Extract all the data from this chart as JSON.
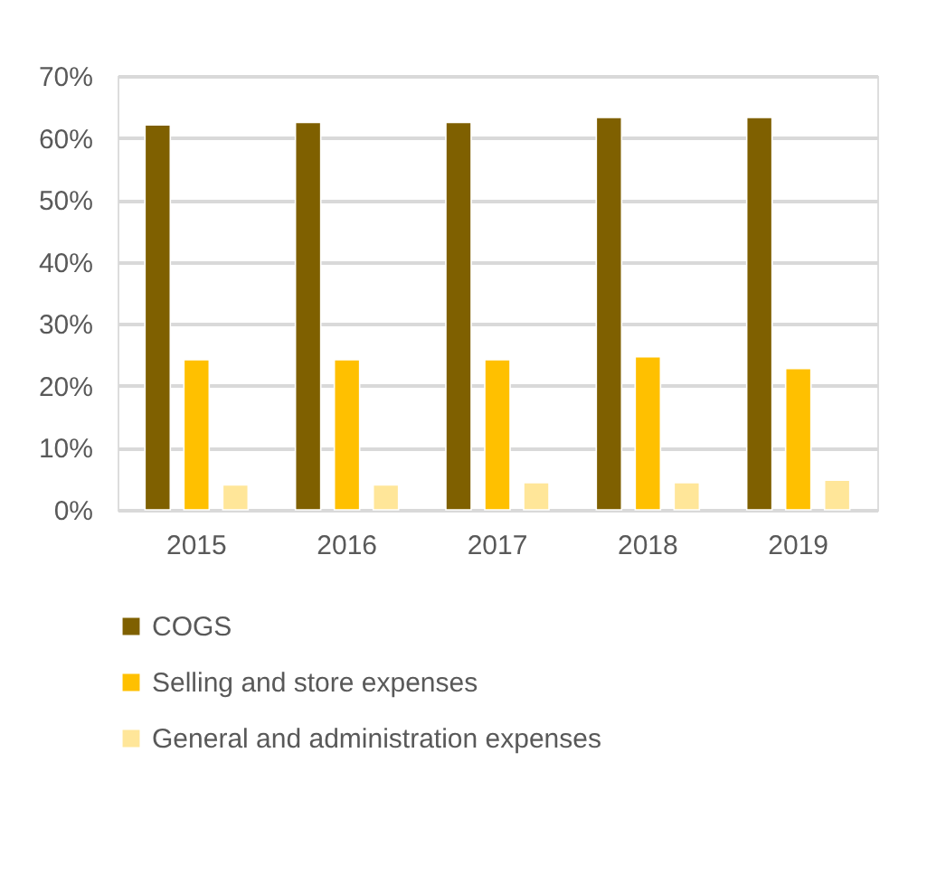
{
  "chart_data": {
    "type": "bar",
    "categories": [
      "2015",
      "2016",
      "2017",
      "2018",
      "2019"
    ],
    "series": [
      {
        "name": "COGS",
        "color": "#7f6000",
        "values": [
          62.1,
          62.5,
          62.5,
          63.3,
          63.3
        ]
      },
      {
        "name": "Selling and store expenses",
        "color": "#ffc000",
        "values": [
          24.2,
          24.2,
          24.2,
          24.7,
          22.8
        ]
      },
      {
        "name": "General and administration expenses",
        "color": "#ffe699",
        "values": [
          4.0,
          4.0,
          4.4,
          4.4,
          4.8
        ]
      }
    ],
    "ylim": [
      0,
      70
    ],
    "yticks": [
      {
        "value": 0,
        "label": "0%"
      },
      {
        "value": 10,
        "label": "10%"
      },
      {
        "value": 20,
        "label": "20%"
      },
      {
        "value": 30,
        "label": "30%"
      },
      {
        "value": 40,
        "label": "40%"
      },
      {
        "value": 50,
        "label": "50%"
      },
      {
        "value": 60,
        "label": "60%"
      },
      {
        "value": 70,
        "label": "70%"
      }
    ],
    "grid": "y",
    "legend": "bottom"
  }
}
